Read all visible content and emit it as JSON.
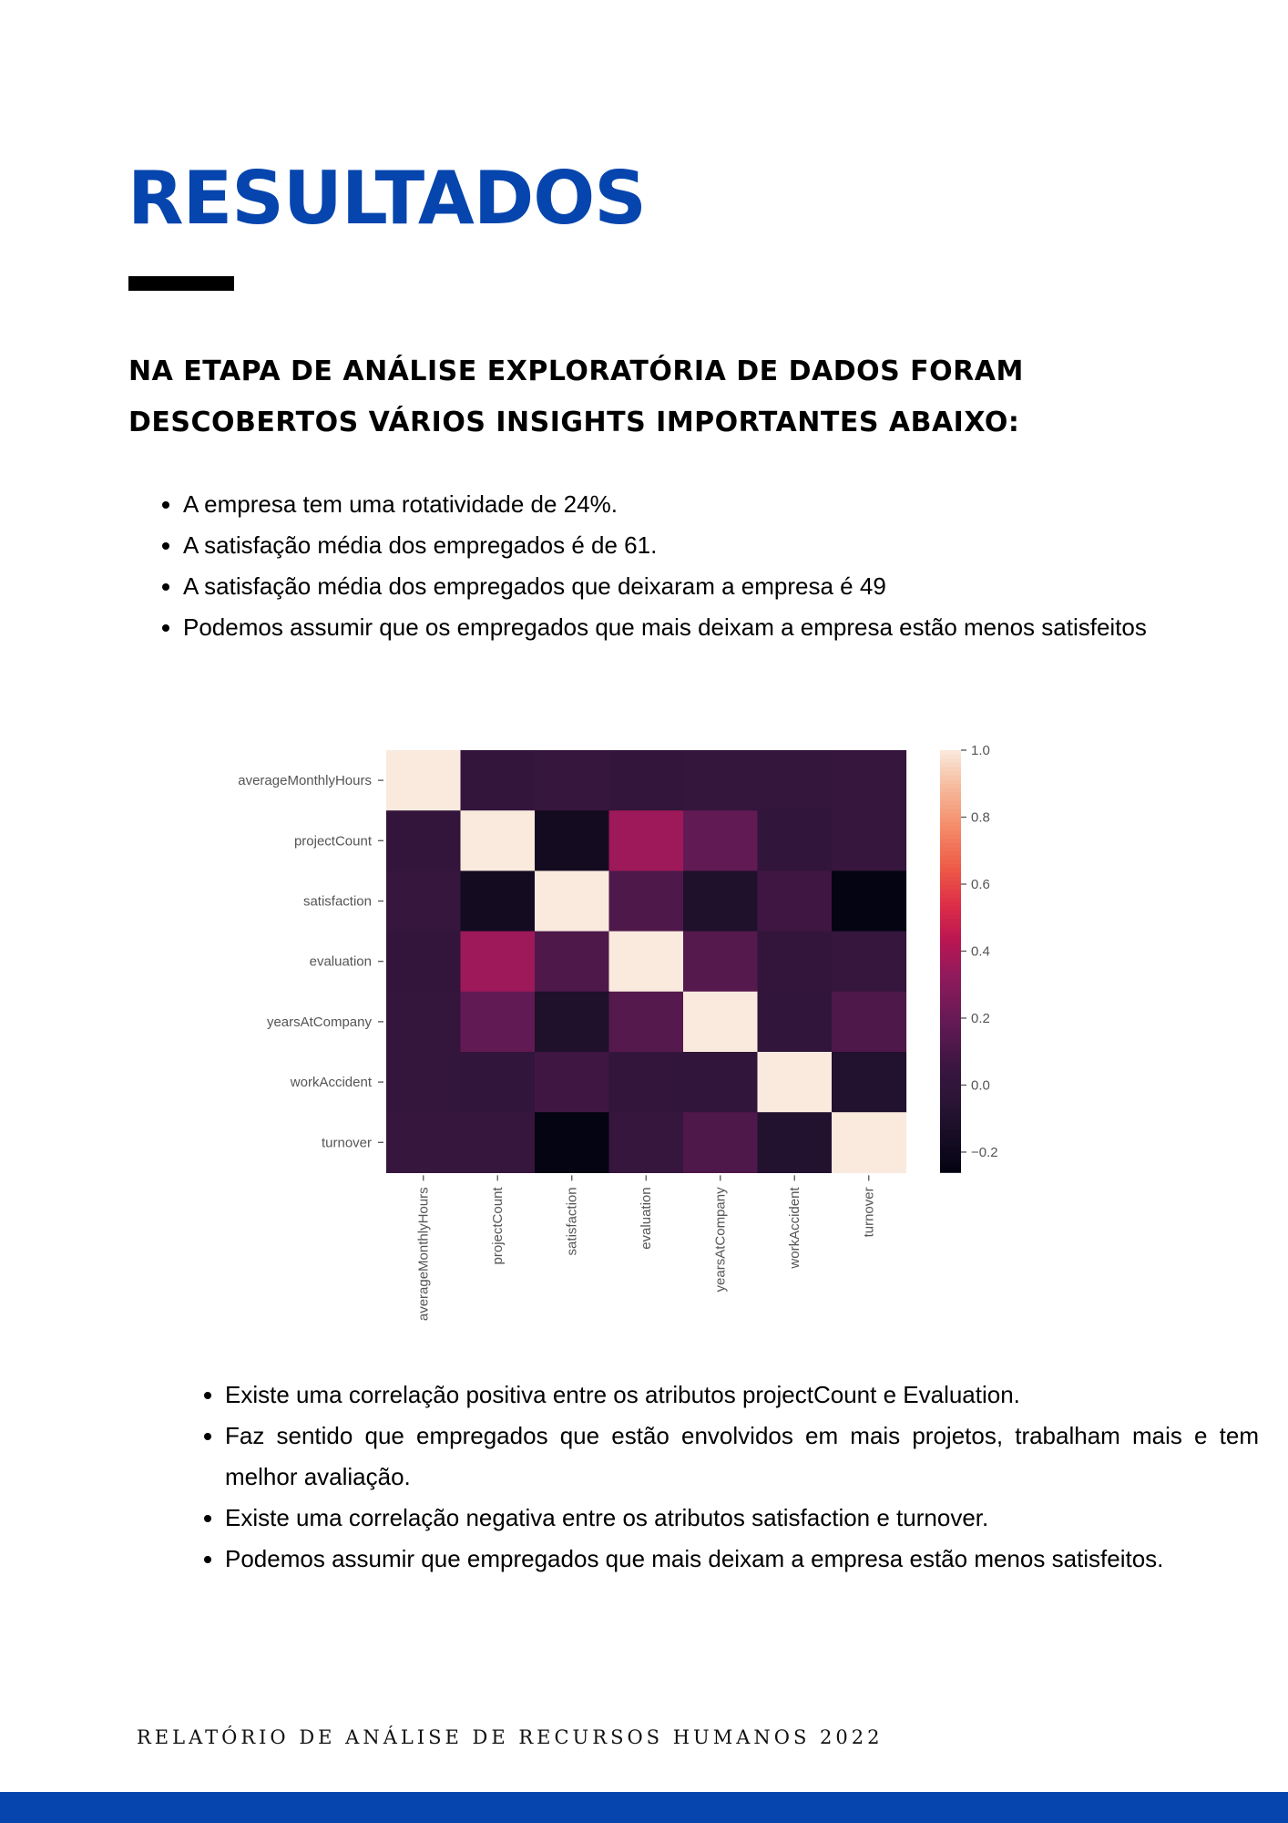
{
  "page": {
    "title": "RESULTADOS",
    "subtitle_lines": [
      "NA ETAPA DE ANÁLISE EXPLORATÓRIA DE DADOS FORAM",
      "DESCOBERTOS VÁRIOS INSIGHTS IMPORTANTES ABAIXO:"
    ],
    "insights": [
      " A empresa tem uma rotatividade de 24%.",
      "A satisfação média dos empregados é de 61.",
      "A satisfação média dos empregados que deixaram a empresa é 49",
      "Podemos assumir que os empregados que mais deixam a empresa estão menos satisfeitos"
    ],
    "conclusions": [
      "Existe uma correlação positiva entre os atributos projectCount e Evaluation.",
      "Faz sentido que empregados que estão envolvidos em mais projetos, trabalham mais e tem melhor avaliação.",
      "Existe uma correlação negativa entre os atributos satisfaction e turnover.",
      "Podemos assumir que empregados que mais deixam a empresa estão menos satisfeitos."
    ],
    "footer": "RELATÓRIO DE ANÁLISE DE RECURSOS HUMANOS 2022",
    "colors": {
      "title": "#0645ad",
      "bar": "#000000",
      "band": "#0645ad"
    }
  },
  "chart_data": {
    "type": "heatmap",
    "labels": [
      "averageMonthlyHours",
      "projectCount",
      "satisfaction",
      "evaluation",
      "yearsAtCompany",
      "workAccident",
      "turnover"
    ],
    "values": [
      [
        1.0,
        0.01,
        0.03,
        0.01,
        0.02,
        0.02,
        0.03
      ],
      [
        0.01,
        1.0,
        -0.17,
        0.36,
        0.18,
        0.0,
        0.03
      ],
      [
        0.03,
        -0.17,
        1.0,
        0.12,
        -0.11,
        0.07,
        -0.26
      ],
      [
        0.01,
        0.36,
        0.12,
        1.0,
        0.14,
        0.01,
        0.03
      ],
      [
        0.02,
        0.18,
        -0.11,
        0.14,
        1.0,
        0.0,
        0.12
      ],
      [
        0.02,
        0.0,
        0.07,
        0.01,
        0.0,
        1.0,
        -0.09
      ],
      [
        0.03,
        0.03,
        -0.26,
        0.03,
        0.12,
        -0.09,
        1.0
      ]
    ],
    "colorbar_range": [
      -0.26,
      1.0
    ],
    "colorbar_ticks": [
      1.0,
      0.8,
      0.6,
      0.4,
      0.2,
      0.0,
      -0.2
    ],
    "colorbar_tick_labels": [
      "1.0",
      "0.8",
      "0.6",
      "0.4",
      "0.2",
      "0.0",
      "−0.2"
    ],
    "colormap": "rocket",
    "title": "",
    "xlabel": "",
    "ylabel": ""
  }
}
